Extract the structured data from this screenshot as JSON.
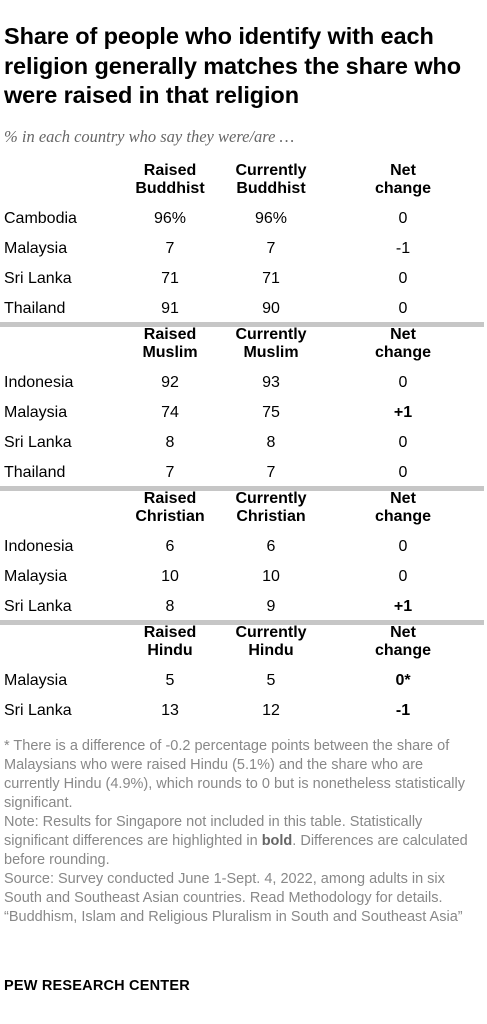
{
  "title": "Share of people who identify with each religion generally matches the share who were raised in that religion",
  "subtitle": "% in each country who say they were/are …",
  "chart_data": {
    "type": "table",
    "sections": [
      {
        "religion": "Buddhist",
        "headers": [
          "Raised\nBuddhist",
          "Currently\nBuddhist",
          "Net\nchange"
        ],
        "rows": [
          {
            "country": "Cambodia",
            "raised": "96%",
            "currently": "96%",
            "net": "0",
            "significant": false
          },
          {
            "country": "Malaysia",
            "raised": "7",
            "currently": "7",
            "net": "-1",
            "significant": false
          },
          {
            "country": "Sri Lanka",
            "raised": "71",
            "currently": "71",
            "net": "0",
            "significant": false
          },
          {
            "country": "Thailand",
            "raised": "91",
            "currently": "90",
            "net": "0",
            "significant": false
          }
        ]
      },
      {
        "religion": "Muslim",
        "headers": [
          "Raised\nMuslim",
          "Currently\nMuslim",
          "Net\nchange"
        ],
        "rows": [
          {
            "country": "Indonesia",
            "raised": "92",
            "currently": "93",
            "net": "0",
            "significant": false
          },
          {
            "country": "Malaysia",
            "raised": "74",
            "currently": "75",
            "net": "+1",
            "significant": true
          },
          {
            "country": "Sri Lanka",
            "raised": "8",
            "currently": "8",
            "net": "0",
            "significant": false
          },
          {
            "country": "Thailand",
            "raised": "7",
            "currently": "7",
            "net": "0",
            "significant": false
          }
        ]
      },
      {
        "religion": "Christian",
        "headers": [
          "Raised\nChristian",
          "Currently\nChristian",
          "Net\nchange"
        ],
        "rows": [
          {
            "country": "Indonesia",
            "raised": "6",
            "currently": "6",
            "net": "0",
            "significant": false
          },
          {
            "country": "Malaysia",
            "raised": "10",
            "currently": "10",
            "net": "0",
            "significant": false
          },
          {
            "country": "Sri Lanka",
            "raised": "8",
            "currently": "9",
            "net": "+1",
            "significant": true
          }
        ]
      },
      {
        "religion": "Hindu",
        "headers": [
          "Raised\nHindu",
          "Currently\nHindu",
          "Net\nchange"
        ],
        "rows": [
          {
            "country": "Malaysia",
            "raised": "5",
            "currently": "5",
            "net": "0*",
            "significant": true
          },
          {
            "country": "Sri Lanka",
            "raised": "13",
            "currently": "12",
            "net": "-1",
            "significant": true
          }
        ]
      }
    ]
  },
  "notes": {
    "footnote": "* There is a difference of -0.2 percentage points between the share of Malaysians who were raised Hindu (5.1%) and the share who are currently Hindu (4.9%), which rounds to 0 but is nonetheless statistically significant.",
    "note_before_bold": "Note: Results for Singapore not included in this table. Statistically significant differences are highlighted in ",
    "note_bold": "bold",
    "note_after_bold": ". Differences are calculated before rounding.",
    "source": "Source: Survey conducted June 1-Sept. 4, 2022, among adults in six South and Southeast Asian countries. Read Methodology for details.",
    "report": "“Buddhism, Islam and Religious Pluralism in South and Southeast Asia”"
  },
  "org": "PEW RESEARCH CENTER",
  "colors": {
    "separator": "#c6c6c6",
    "text": "#000000",
    "notes": "#888888",
    "subtitle": "#666666"
  }
}
